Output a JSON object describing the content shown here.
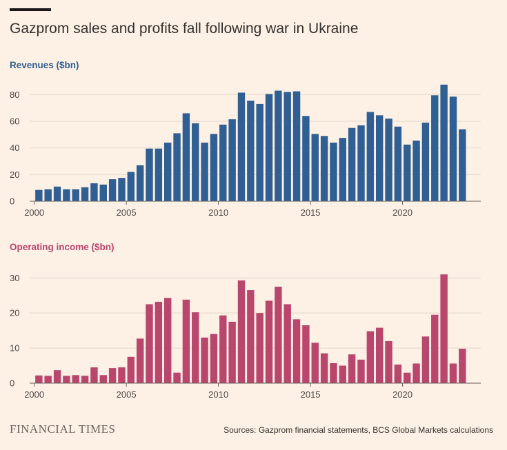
{
  "title": "Gazprom sales and profits fall following war in Ukraine",
  "brand": "FINANCIAL TIMES",
  "source": "Sources: Gazprom financial statements, BCS Global Markets calculations",
  "colors": {
    "background": "#fdf1e6",
    "revenue": "#2f5f93",
    "income": "#b9466c",
    "grid": "#e2d6cb",
    "axis": "#66605c"
  },
  "chart_data": [
    {
      "type": "bar",
      "title": "Revenues ($bn)",
      "xlabel": "",
      "ylabel": "",
      "ylim": [
        0,
        90
      ],
      "yticks": [
        0,
        20,
        40,
        60,
        80
      ],
      "xlim": [
        1999.75,
        2024.25
      ],
      "xticks": [
        2000,
        2005,
        2010,
        2015,
        2020
      ],
      "x": [
        2000.5,
        2001.0,
        2001.5,
        2002.0,
        2002.5,
        2003.0,
        2003.5,
        2004.0,
        2004.5,
        2005.0,
        2005.5,
        2006.0,
        2006.5,
        2007.0,
        2007.5,
        2008.0,
        2008.5,
        2009.0,
        2009.5,
        2010.0,
        2010.5,
        2011.0,
        2011.5,
        2012.0,
        2012.5,
        2013.0,
        2013.5,
        2014.0,
        2014.5,
        2015.0,
        2015.5,
        2016.0,
        2016.5,
        2017.0,
        2017.5,
        2018.0,
        2018.5,
        2019.0,
        2019.5,
        2020.0,
        2020.5,
        2021.0,
        2021.5,
        2022.0,
        2022.5,
        2023.0,
        2023.5
      ],
      "values": [
        8.5,
        9,
        11,
        9,
        9,
        10.5,
        13.5,
        12.5,
        16.5,
        17.5,
        22,
        27,
        39.5,
        39.5,
        44,
        51,
        66,
        58.5,
        44,
        50.5,
        57.5,
        61.5,
        81.5,
        75.5,
        73,
        80.5,
        83,
        82,
        82.5,
        64,
        50.5,
        49,
        44,
        47.5,
        55,
        57,
        67,
        64.5,
        62,
        56,
        42.5,
        45.5,
        59,
        79.5,
        87.5,
        78.5,
        54
      ]
    },
    {
      "type": "bar",
      "title": "Operating income ($bn)",
      "xlabel": "",
      "ylabel": "",
      "ylim": [
        0,
        33
      ],
      "yticks": [
        0,
        10,
        20,
        30
      ],
      "xlim": [
        1999.75,
        2024.25
      ],
      "xticks": [
        2000,
        2005,
        2010,
        2015,
        2020
      ],
      "x": [
        2000.5,
        2001.0,
        2001.5,
        2002.0,
        2002.5,
        2003.0,
        2003.5,
        2004.0,
        2004.5,
        2005.0,
        2005.5,
        2006.0,
        2006.5,
        2007.0,
        2007.5,
        2008.0,
        2008.5,
        2009.0,
        2009.5,
        2010.0,
        2010.5,
        2011.0,
        2011.5,
        2012.0,
        2012.5,
        2013.0,
        2013.5,
        2014.0,
        2014.5,
        2015.0,
        2015.5,
        2016.0,
        2016.5,
        2017.0,
        2017.5,
        2018.0,
        2018.5,
        2019.0,
        2019.5,
        2020.0,
        2020.5,
        2021.0,
        2021.5,
        2022.0,
        2022.5,
        2023.0,
        2023.5
      ],
      "values": [
        2.2,
        2.1,
        3.7,
        2.1,
        2.3,
        2.1,
        4.5,
        2.3,
        4.3,
        4.5,
        7.5,
        12.7,
        22.5,
        23.2,
        24.3,
        3,
        23.8,
        20.2,
        13,
        14,
        19.3,
        17.5,
        29.3,
        26.5,
        20,
        23.5,
        27.5,
        22.5,
        18.2,
        16.5,
        11.5,
        8.5,
        5.7,
        5,
        8.2,
        6.7,
        14.8,
        15.8,
        12,
        5.3,
        3,
        5.6,
        13.3,
        19.5,
        31,
        5.6,
        9.8
      ]
    }
  ]
}
